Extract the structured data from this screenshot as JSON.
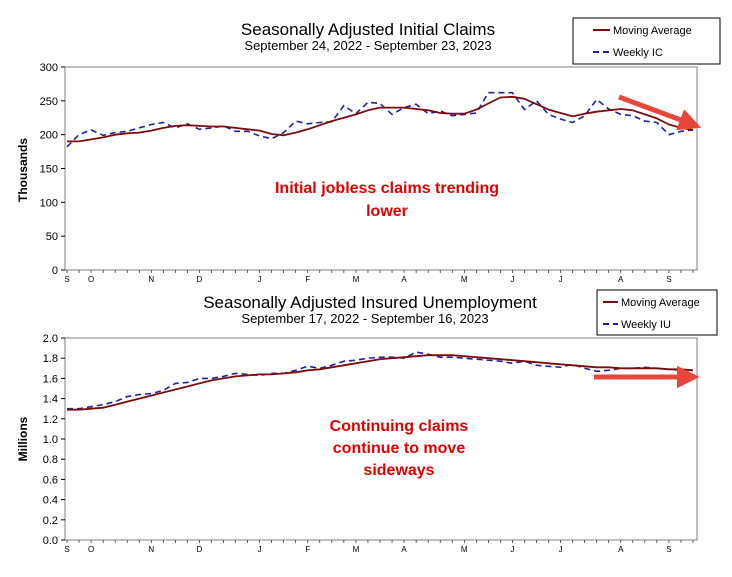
{
  "chart_data": [
    {
      "type": "line",
      "title": "Seasonally Adjusted Initial Claims",
      "subtitle": "September 24, 2022 - September 23, 2023",
      "ylabel": "Thousands",
      "ylim": [
        0,
        300
      ],
      "yticks": [
        0,
        50,
        100,
        150,
        200,
        250,
        300
      ],
      "ytick_labels": [
        "0",
        "50",
        "100",
        "150",
        "200",
        "250",
        "300"
      ],
      "x_count": 53,
      "month_labels": [
        {
          "label": "S",
          "index": 0
        },
        {
          "label": "O",
          "index": 2
        },
        {
          "label": "N",
          "index": 7
        },
        {
          "label": "D",
          "index": 11
        },
        {
          "label": "J",
          "index": 16
        },
        {
          "label": "F",
          "index": 20
        },
        {
          "label": "M",
          "index": 24
        },
        {
          "label": "A",
          "index": 28
        },
        {
          "label": "M",
          "index": 33
        },
        {
          "label": "J",
          "index": 37
        },
        {
          "label": "J",
          "index": 41
        },
        {
          "label": "A",
          "index": 46
        },
        {
          "label": "S",
          "index": 50
        }
      ],
      "series": [
        {
          "name": "Moving Average",
          "style": "solid",
          "color": "#7b0d0d",
          "values": [
            190,
            190,
            193,
            196,
            200,
            202,
            203,
            206,
            210,
            213,
            214,
            213,
            212,
            212,
            210,
            208,
            206,
            201,
            199,
            203,
            208,
            214,
            220,
            225,
            230,
            236,
            240,
            240,
            240,
            238,
            236,
            232,
            231,
            231,
            237,
            246,
            255,
            256,
            253,
            245,
            237,
            232,
            227,
            231,
            234,
            236,
            238,
            236,
            230,
            224,
            215,
            210,
            207
          ]
        },
        {
          "name": "Weekly IC",
          "style": "dashed",
          "color": "#2020a0",
          "values": [
            182,
            200,
            207,
            199,
            203,
            205,
            210,
            215,
            218,
            210,
            216,
            208,
            210,
            213,
            205,
            205,
            198,
            194,
            203,
            220,
            216,
            218,
            219,
            243,
            231,
            248,
            246,
            230,
            240,
            245,
            231,
            235,
            228,
            230,
            232,
            262,
            262,
            262,
            237,
            250,
            230,
            223,
            218,
            228,
            252,
            238,
            230,
            228,
            220,
            218,
            200,
            205,
            207
          ]
        }
      ],
      "annotation": [
        "Initial jobless claims trending",
        "lower"
      ],
      "arrow": "down-right"
    },
    {
      "type": "line",
      "title": "Seasonally Adjusted Insured Unemployment",
      "subtitle": "September 17, 2022 - September 16, 2023",
      "ylabel": "Millions",
      "ylim": [
        0.0,
        2.0
      ],
      "yticks": [
        0.0,
        0.2,
        0.4,
        0.6,
        0.8,
        1.0,
        1.2,
        1.4,
        1.6,
        1.8,
        2.0
      ],
      "ytick_labels": [
        "0.0",
        "0.2",
        "0.4",
        "0.6",
        "0.8",
        "1.0",
        "1.2",
        "1.4",
        "1.6",
        "1.8",
        "2.0"
      ],
      "x_count": 53,
      "month_labels": [
        {
          "label": "S",
          "index": 0
        },
        {
          "label": "O",
          "index": 2
        },
        {
          "label": "N",
          "index": 7
        },
        {
          "label": "D",
          "index": 11
        },
        {
          "label": "J",
          "index": 16
        },
        {
          "label": "F",
          "index": 20
        },
        {
          "label": "M",
          "index": 24
        },
        {
          "label": "A",
          "index": 28
        },
        {
          "label": "M",
          "index": 33
        },
        {
          "label": "J",
          "index": 37
        },
        {
          "label": "J",
          "index": 41
        },
        {
          "label": "A",
          "index": 46
        },
        {
          "label": "S",
          "index": 50
        }
      ],
      "series": [
        {
          "name": "Moving Average",
          "style": "solid",
          "color": "#7b0d0d",
          "values": [
            1.29,
            1.29,
            1.3,
            1.31,
            1.34,
            1.37,
            1.4,
            1.43,
            1.46,
            1.49,
            1.52,
            1.55,
            1.58,
            1.6,
            1.62,
            1.63,
            1.64,
            1.64,
            1.65,
            1.66,
            1.68,
            1.69,
            1.71,
            1.73,
            1.75,
            1.77,
            1.79,
            1.8,
            1.81,
            1.82,
            1.83,
            1.83,
            1.83,
            1.82,
            1.81,
            1.8,
            1.79,
            1.78,
            1.77,
            1.76,
            1.75,
            1.74,
            1.73,
            1.72,
            1.71,
            1.71,
            1.7,
            1.7,
            1.7,
            1.7,
            1.69,
            1.69,
            1.68
          ]
        },
        {
          "name": "Weekly IU",
          "style": "dashed",
          "color": "#2020a0",
          "values": [
            1.3,
            1.3,
            1.32,
            1.34,
            1.37,
            1.42,
            1.44,
            1.45,
            1.48,
            1.55,
            1.56,
            1.6,
            1.6,
            1.62,
            1.65,
            1.64,
            1.63,
            1.65,
            1.65,
            1.68,
            1.72,
            1.7,
            1.73,
            1.77,
            1.78,
            1.8,
            1.81,
            1.81,
            1.8,
            1.86,
            1.84,
            1.81,
            1.81,
            1.8,
            1.79,
            1.78,
            1.77,
            1.75,
            1.77,
            1.73,
            1.72,
            1.71,
            1.74,
            1.7,
            1.67,
            1.68,
            1.7,
            1.7,
            1.71,
            1.7,
            1.69,
            1.68,
            1.65
          ]
        }
      ],
      "annotation": [
        "Continuing claims",
        "continue to move",
        "sideways"
      ],
      "arrow": "right"
    }
  ]
}
